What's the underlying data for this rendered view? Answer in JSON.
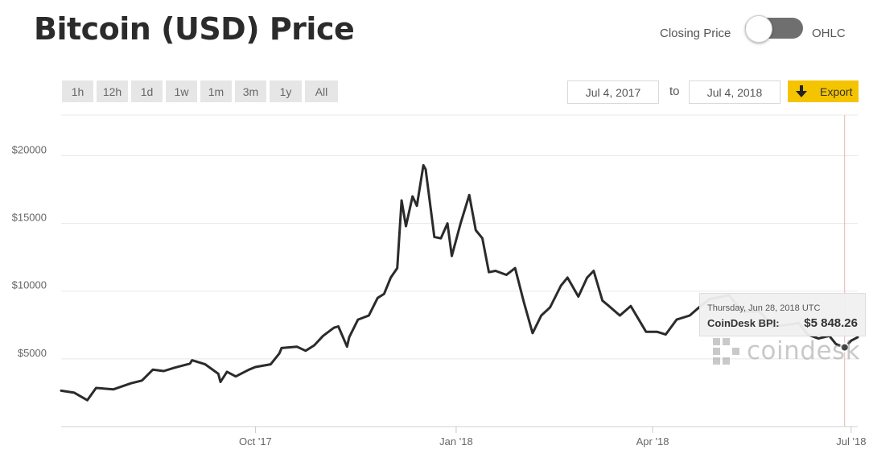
{
  "header": {
    "title": "Bitcoin (USD) Price",
    "toggle": {
      "left_label": "Closing Price",
      "right_label": "OHLC",
      "state": "closing-price"
    }
  },
  "range_buttons": [
    {
      "label": "1h",
      "active": false
    },
    {
      "label": "12h",
      "active": false
    },
    {
      "label": "1d",
      "active": false
    },
    {
      "label": "1w",
      "active": false
    },
    {
      "label": "1m",
      "active": false
    },
    {
      "label": "3m",
      "active": false
    },
    {
      "label": "1y",
      "active": true
    },
    {
      "label": "All",
      "active": false
    }
  ],
  "date_range": {
    "from": "Jul 4, 2017",
    "to_label": "to",
    "to": "Jul 4, 2018"
  },
  "export": {
    "label": "Export",
    "icon": "download-arrow-icon"
  },
  "colors": {
    "accent": "#f5c400",
    "line": "#2b2b2b",
    "grid": "#e8e8e8",
    "toggle_track": "#6f6f6f"
  },
  "tooltip": {
    "date": "Thursday, Jun 28, 2018 UTC",
    "label": "CoinDesk BPI:",
    "value": "$5 848.26"
  },
  "watermark": {
    "text": "coindesk",
    "icon": "coindesk-logo-icon"
  },
  "chart_data": {
    "type": "line",
    "title": "Bitcoin (USD) Price",
    "xlabel": "",
    "ylabel": "",
    "x_range": [
      "2017-07-04",
      "2018-07-04"
    ],
    "ylim": [
      0,
      23000
    ],
    "grid": true,
    "y_ticks": [
      {
        "value": 5000,
        "label": "$5000"
      },
      {
        "value": 10000,
        "label": "$10000"
      },
      {
        "value": 15000,
        "label": "$15000"
      },
      {
        "value": 20000,
        "label": "$20000"
      }
    ],
    "x_ticks": [
      {
        "date": "2017-10-01",
        "label": "Oct '17"
      },
      {
        "date": "2018-01-01",
        "label": "Jan '18"
      },
      {
        "date": "2018-04-01",
        "label": "Apr '18"
      },
      {
        "date": "2018-07-01",
        "label": "Jul '18"
      }
    ],
    "series": [
      {
        "points": [
          [
            "2017-07-04",
            2650
          ],
          [
            "2017-07-10",
            2500
          ],
          [
            "2017-07-16",
            1950
          ],
          [
            "2017-07-20",
            2850
          ],
          [
            "2017-07-28",
            2750
          ],
          [
            "2017-08-05",
            3200
          ],
          [
            "2017-08-10",
            3400
          ],
          [
            "2017-08-15",
            4200
          ],
          [
            "2017-08-20",
            4100
          ],
          [
            "2017-08-25",
            4350
          ],
          [
            "2017-09-01",
            4650
          ],
          [
            "2017-09-02",
            4900
          ],
          [
            "2017-09-08",
            4600
          ],
          [
            "2017-09-14",
            3900
          ],
          [
            "2017-09-15",
            3300
          ],
          [
            "2017-09-18",
            4050
          ],
          [
            "2017-09-22",
            3700
          ],
          [
            "2017-09-28",
            4200
          ],
          [
            "2017-10-01",
            4400
          ],
          [
            "2017-10-08",
            4600
          ],
          [
            "2017-10-12",
            5400
          ],
          [
            "2017-10-13",
            5800
          ],
          [
            "2017-10-20",
            5900
          ],
          [
            "2017-10-24",
            5600
          ],
          [
            "2017-10-28",
            6000
          ],
          [
            "2017-11-01",
            6700
          ],
          [
            "2017-11-06",
            7300
          ],
          [
            "2017-11-08",
            7400
          ],
          [
            "2017-11-12",
            5900
          ],
          [
            "2017-11-13",
            6600
          ],
          [
            "2017-11-17",
            7900
          ],
          [
            "2017-11-22",
            8200
          ],
          [
            "2017-11-26",
            9500
          ],
          [
            "2017-11-29",
            9800
          ],
          [
            "2017-12-02",
            11000
          ],
          [
            "2017-12-05",
            11700
          ],
          [
            "2017-12-07",
            16700
          ],
          [
            "2017-12-09",
            14800
          ],
          [
            "2017-12-12",
            17000
          ],
          [
            "2017-12-14",
            16300
          ],
          [
            "2017-12-17",
            19300
          ],
          [
            "2017-12-18",
            19000
          ],
          [
            "2017-12-22",
            14000
          ],
          [
            "2017-12-25",
            13900
          ],
          [
            "2017-12-28",
            15000
          ],
          [
            "2017-12-30",
            12600
          ],
          [
            "2018-01-03",
            15000
          ],
          [
            "2018-01-07",
            17100
          ],
          [
            "2018-01-10",
            14500
          ],
          [
            "2018-01-13",
            13900
          ],
          [
            "2018-01-16",
            11400
          ],
          [
            "2018-01-19",
            11500
          ],
          [
            "2018-01-24",
            11200
          ],
          [
            "2018-01-28",
            11700
          ],
          [
            "2018-02-01",
            9200
          ],
          [
            "2018-02-05",
            6900
          ],
          [
            "2018-02-09",
            8200
          ],
          [
            "2018-02-13",
            8800
          ],
          [
            "2018-02-18",
            10400
          ],
          [
            "2018-02-21",
            11000
          ],
          [
            "2018-02-26",
            9600
          ],
          [
            "2018-03-02",
            11000
          ],
          [
            "2018-03-05",
            11500
          ],
          [
            "2018-03-09",
            9300
          ],
          [
            "2018-03-12",
            8900
          ],
          [
            "2018-03-17",
            8200
          ],
          [
            "2018-03-22",
            8900
          ],
          [
            "2018-03-29",
            7000
          ],
          [
            "2018-04-03",
            7000
          ],
          [
            "2018-04-07",
            6800
          ],
          [
            "2018-04-12",
            7900
          ],
          [
            "2018-04-18",
            8200
          ],
          [
            "2018-04-23",
            8900
          ],
          [
            "2018-04-27",
            9400
          ],
          [
            "2018-05-06",
            9700
          ],
          [
            "2018-05-12",
            8500
          ],
          [
            "2018-05-20",
            8500
          ],
          [
            "2018-05-26",
            7400
          ],
          [
            "2018-06-01",
            7500
          ],
          [
            "2018-06-07",
            7650
          ],
          [
            "2018-06-11",
            6800
          ],
          [
            "2018-06-16",
            6500
          ],
          [
            "2018-06-21",
            6700
          ],
          [
            "2018-06-24",
            6100
          ],
          [
            "2018-06-28",
            5848.26
          ],
          [
            "2018-07-01",
            6350
          ],
          [
            "2018-07-04",
            6600
          ]
        ]
      }
    ],
    "highlight": {
      "date": "2018-06-28",
      "value": 5848.26
    }
  }
}
